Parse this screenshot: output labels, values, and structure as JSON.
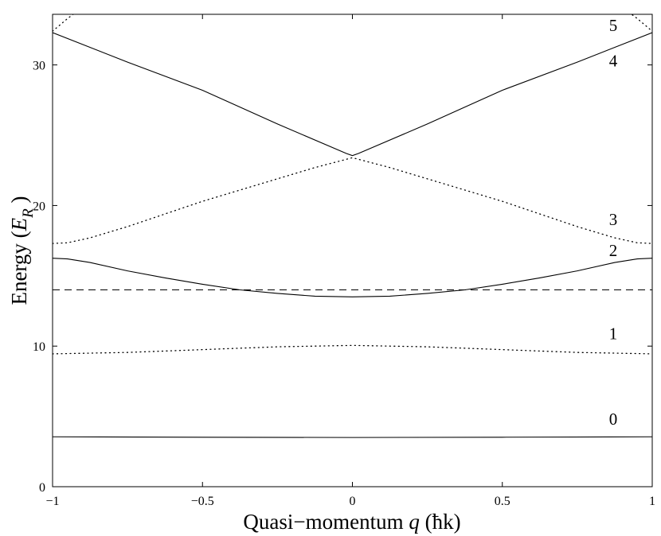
{
  "chart_data": {
    "type": "line",
    "title": "",
    "xlabel": "Quasi−momentum",
    "xlabel_symbol": "q",
    "xlabel_unit": "(ħk)",
    "ylabel": "Energy",
    "ylabel_symbol": "E",
    "ylabel_subscript": "R",
    "xlim": [
      -1,
      1
    ],
    "ylim": [
      0,
      33.6
    ],
    "xticks": [
      {
        "value": -1,
        "label": "−1"
      },
      {
        "value": -0.5,
        "label": "−0.5"
      },
      {
        "value": 0,
        "label": "0"
      },
      {
        "value": 0.5,
        "label": "0.5"
      },
      {
        "value": 1,
        "label": "1"
      }
    ],
    "yticks": [
      {
        "value": 0,
        "label": "0"
      },
      {
        "value": 10,
        "label": "10"
      },
      {
        "value": 20,
        "label": "20"
      },
      {
        "value": 30,
        "label": "30"
      }
    ],
    "grid": false,
    "legend": "none",
    "reference_line": {
      "y": 14.0,
      "style": "dashed"
    },
    "series": [
      {
        "id": "band0",
        "label": "0",
        "style": "solid",
        "x": [
          -1,
          -0.5,
          0,
          0.5,
          1
        ],
        "y": [
          3.55,
          3.52,
          3.5,
          3.52,
          3.55
        ]
      },
      {
        "id": "band1",
        "label": "1",
        "style": "dotted",
        "x": [
          -1,
          -0.75,
          -0.5,
          -0.25,
          0,
          0.25,
          0.5,
          0.75,
          1
        ],
        "y": [
          9.45,
          9.55,
          9.75,
          9.95,
          10.05,
          9.95,
          9.75,
          9.55,
          9.45
        ]
      },
      {
        "id": "band2",
        "label": "2",
        "style": "solid",
        "x": [
          -1,
          -0.95,
          -0.875,
          -0.75,
          -0.625,
          -0.5,
          -0.375,
          -0.25,
          -0.125,
          0,
          0.125,
          0.25,
          0.375,
          0.5,
          0.625,
          0.75,
          0.875,
          0.95,
          1
        ],
        "y": [
          16.25,
          16.2,
          15.95,
          15.35,
          14.85,
          14.4,
          14.0,
          13.75,
          13.55,
          13.5,
          13.55,
          13.75,
          14.0,
          14.4,
          14.85,
          15.35,
          15.95,
          16.2,
          16.25
        ]
      },
      {
        "id": "band3",
        "label": "3",
        "style": "dotted",
        "x": [
          -1,
          -0.95,
          -0.875,
          -0.75,
          -0.625,
          -0.5,
          -0.375,
          -0.25,
          -0.125,
          0,
          0.125,
          0.25,
          0.375,
          0.5,
          0.625,
          0.75,
          0.875,
          0.95,
          1
        ],
        "y": [
          17.3,
          17.35,
          17.7,
          18.5,
          19.4,
          20.3,
          21.1,
          21.9,
          22.7,
          23.4,
          22.7,
          21.9,
          21.1,
          20.3,
          19.4,
          18.5,
          17.7,
          17.35,
          17.3
        ]
      },
      {
        "id": "band4",
        "label": "4",
        "style": "solid",
        "x": [
          -1,
          -0.75,
          -0.5,
          -0.25,
          -0.02,
          0,
          0.02,
          0.25,
          0.5,
          0.75,
          1
        ],
        "y": [
          32.3,
          30.2,
          28.2,
          25.8,
          23.7,
          23.55,
          23.7,
          25.8,
          28.2,
          30.2,
          32.3
        ]
      },
      {
        "id": "band5",
        "label": "5",
        "style": "dotted",
        "x": [
          -1,
          -0.95,
          -0.925,
          0.925,
          0.95,
          1
        ],
        "y": [
          32.4,
          33.3,
          33.7,
          33.7,
          33.3,
          32.4
        ]
      }
    ],
    "band_labels": [
      {
        "text": "0",
        "x": 0.87,
        "y": 4.4
      },
      {
        "text": "1",
        "x": 0.87,
        "y": 10.5
      },
      {
        "text": "2",
        "x": 0.87,
        "y": 16.4
      },
      {
        "text": "3",
        "x": 0.87,
        "y": 18.6
      },
      {
        "text": "4",
        "x": 0.87,
        "y": 29.9
      },
      {
        "text": "5",
        "x": 0.87,
        "y": 32.4
      }
    ]
  }
}
